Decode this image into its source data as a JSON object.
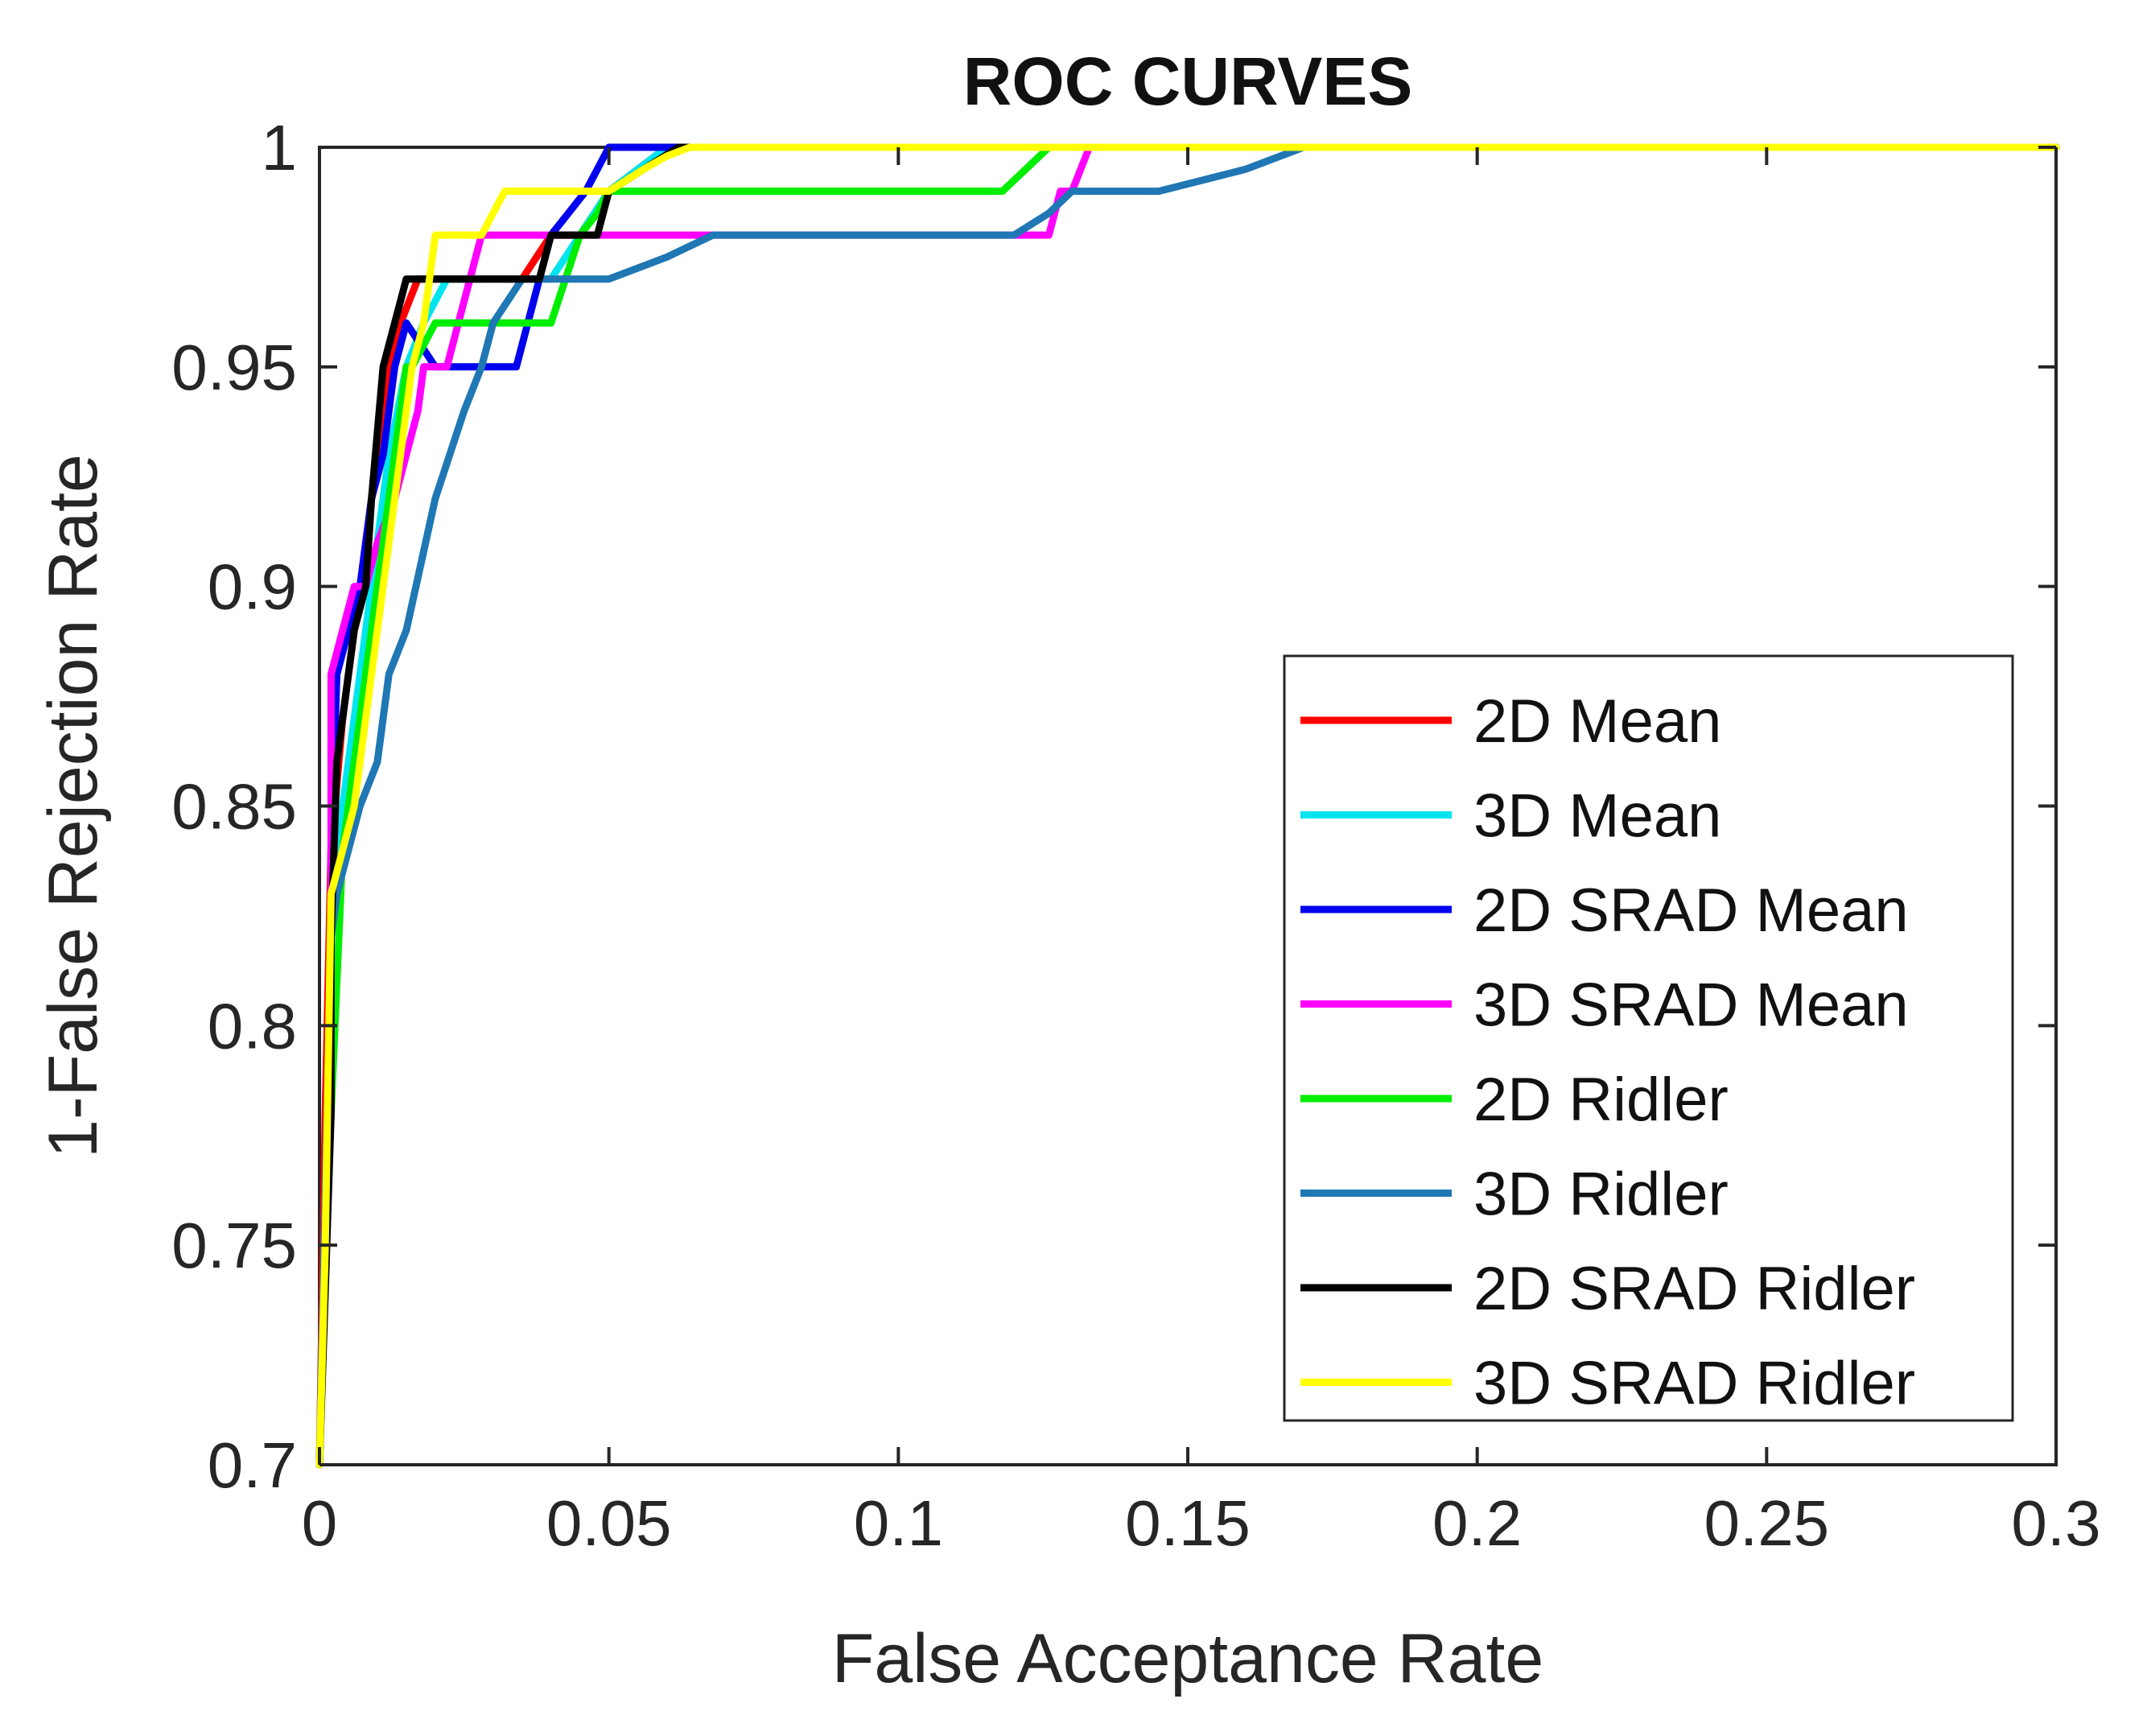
{
  "chart_data": {
    "type": "line",
    "title": "ROC CURVES",
    "xlabel": "False Acceptance Rate",
    "ylabel": "1-False Rejection Rate",
    "xlim": [
      0,
      0.3
    ],
    "ylim": [
      0.7,
      1
    ],
    "xticks": [
      "0",
      "0.05",
      "0.1",
      "0.15",
      "0.2",
      "0.25",
      "0.3"
    ],
    "yticks": [
      "0.7",
      "0.75",
      "0.8",
      "0.85",
      "0.9",
      "0.95",
      "1"
    ],
    "grid": false,
    "legend_position": "bottom-right",
    "series": [
      {
        "name": "2D Mean",
        "color": "#ff0000",
        "x": [
          0,
          0.001,
          0.002,
          0.004,
          0.006,
          0.008,
          0.01,
          0.012,
          0.014,
          0.017,
          0.02,
          0.025,
          0.035,
          0.04,
          0.045,
          0.05,
          0.06,
          0.3
        ],
        "y": [
          0.7,
          0.78,
          0.84,
          0.87,
          0.89,
          0.91,
          0.93,
          0.95,
          0.96,
          0.97,
          0.97,
          0.97,
          0.97,
          0.98,
          0.98,
          0.99,
          1.0,
          1.0
        ]
      },
      {
        "name": "3D Mean",
        "color": "#00e5ee",
        "x": [
          0,
          0.002,
          0.004,
          0.006,
          0.008,
          0.01,
          0.012,
          0.015,
          0.018,
          0.022,
          0.03,
          0.04,
          0.045,
          0.05,
          0.06,
          0.3
        ],
        "y": [
          0.7,
          0.82,
          0.85,
          0.87,
          0.89,
          0.91,
          0.93,
          0.95,
          0.96,
          0.97,
          0.97,
          0.97,
          0.98,
          0.99,
          1.0,
          1.0
        ]
      },
      {
        "name": "2D SRAD Mean",
        "color": "#0000ee",
        "x": [
          0,
          0.002,
          0.002,
          0.003,
          0.005,
          0.007,
          0.009,
          0.011,
          0.013,
          0.015,
          0.02,
          0.025,
          0.034,
          0.038,
          0.04,
          0.043,
          0.046,
          0.05,
          0.056,
          0.3
        ],
        "y": [
          0.7,
          0.79,
          0.84,
          0.88,
          0.89,
          0.9,
          0.92,
          0.93,
          0.95,
          0.96,
          0.95,
          0.95,
          0.95,
          0.97,
          0.98,
          0.985,
          0.99,
          1.0,
          1.0,
          1.0
        ]
      },
      {
        "name": "3D SRAD Mean",
        "color": "#ff00ff",
        "x": [
          0,
          0.001,
          0.002,
          0.002,
          0.004,
          0.006,
          0.008,
          0.01,
          0.013,
          0.015,
          0.017,
          0.018,
          0.02,
          0.022,
          0.024,
          0.026,
          0.028,
          0.05,
          0.06,
          0.12,
          0.126,
          0.128,
          0.13,
          0.133,
          0.3
        ],
        "y": [
          0.7,
          0.75,
          0.8,
          0.88,
          0.89,
          0.9,
          0.9,
          0.91,
          0.92,
          0.93,
          0.94,
          0.95,
          0.95,
          0.95,
          0.96,
          0.97,
          0.98,
          0.98,
          0.98,
          0.98,
          0.98,
          0.99,
          0.99,
          1.0,
          1.0
        ]
      },
      {
        "name": "2D Ridler",
        "color": "#00ee00",
        "x": [
          0,
          0.001,
          0.002,
          0.004,
          0.006,
          0.008,
          0.01,
          0.012,
          0.014,
          0.015,
          0.016,
          0.02,
          0.025,
          0.03,
          0.04,
          0.045,
          0.048,
          0.05,
          0.055,
          0.118,
          0.122,
          0.126,
          0.3
        ],
        "y": [
          0.7,
          0.75,
          0.78,
          0.84,
          0.86,
          0.88,
          0.9,
          0.92,
          0.94,
          0.95,
          0.95,
          0.96,
          0.96,
          0.96,
          0.96,
          0.98,
          0.985,
          0.99,
          0.99,
          0.99,
          0.995,
          1.0,
          1.0
        ]
      },
      {
        "name": "3D Ridler",
        "color": "#1f77b4",
        "x": [
          0,
          0.002,
          0.003,
          0.005,
          0.007,
          0.01,
          0.012,
          0.015,
          0.02,
          0.025,
          0.028,
          0.03,
          0.035,
          0.05,
          0.06,
          0.068,
          0.12,
          0.126,
          0.13,
          0.145,
          0.16,
          0.17,
          0.3
        ],
        "y": [
          0.7,
          0.82,
          0.83,
          0.84,
          0.85,
          0.86,
          0.88,
          0.89,
          0.92,
          0.94,
          0.95,
          0.96,
          0.97,
          0.97,
          0.975,
          0.98,
          0.98,
          0.985,
          0.99,
          0.99,
          0.995,
          1.0,
          1.0
        ]
      },
      {
        "name": "2D SRAD Ridler",
        "color": "#000000",
        "x": [
          0,
          0.002,
          0.002,
          0.003,
          0.004,
          0.006,
          0.008,
          0.009,
          0.011,
          0.013,
          0.015,
          0.02,
          0.03,
          0.038,
          0.04,
          0.042,
          0.048,
          0.05,
          0.056,
          0.062,
          0.3
        ],
        "y": [
          0.7,
          0.78,
          0.82,
          0.86,
          0.87,
          0.89,
          0.9,
          0.92,
          0.95,
          0.96,
          0.97,
          0.97,
          0.97,
          0.97,
          0.98,
          0.98,
          0.98,
          0.99,
          0.995,
          1.0,
          1.0
        ]
      },
      {
        "name": "3D SRAD Ridler",
        "color": "#ffff00",
        "x": [
          0,
          0.001,
          0.002,
          0.004,
          0.006,
          0.008,
          0.01,
          0.012,
          0.014,
          0.016,
          0.018,
          0.02,
          0.026,
          0.028,
          0.032,
          0.036,
          0.05,
          0.056,
          0.06,
          0.064,
          0.3
        ],
        "y": [
          0.7,
          0.75,
          0.83,
          0.84,
          0.85,
          0.87,
          0.89,
          0.91,
          0.93,
          0.95,
          0.96,
          0.98,
          0.98,
          0.98,
          0.99,
          0.99,
          0.99,
          0.995,
          0.998,
          1.0,
          1.0
        ]
      }
    ]
  }
}
